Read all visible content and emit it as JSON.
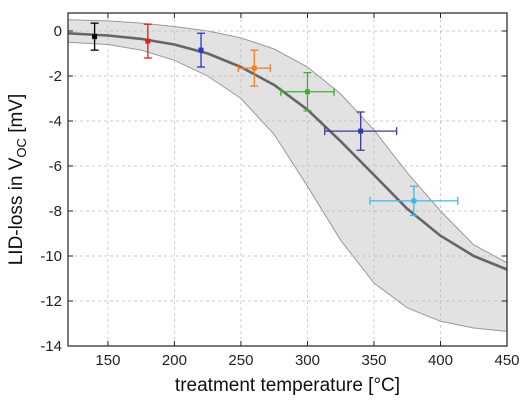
{
  "chart_data": {
    "type": "scatter",
    "xlabel": "treatment temperature [°C]",
    "ylabel_parts": {
      "pre": "LID-loss in V",
      "sub": "OC",
      "post": " [mV]"
    },
    "xlim": [
      120,
      450
    ],
    "ylim": [
      -14,
      0.8
    ],
    "x_ticks": [
      150,
      200,
      250,
      300,
      350,
      400,
      450
    ],
    "y_ticks": [
      0,
      -2,
      -4,
      -6,
      -8,
      -10,
      -12,
      -14
    ],
    "grid": true,
    "points": [
      {
        "x": 140,
        "y": -0.25,
        "xerr": 0,
        "yerr": 0.6,
        "color": "#000000"
      },
      {
        "x": 180,
        "y": -0.45,
        "xerr": 0,
        "yerr": 0.75,
        "color": "#e02020"
      },
      {
        "x": 220,
        "y": -0.85,
        "xerr": 0,
        "yerr": 0.75,
        "color": "#2a36c8"
      },
      {
        "x": 260,
        "y": -1.65,
        "xerr": 12,
        "yerr": 0.8,
        "color": "#f08020"
      },
      {
        "x": 300,
        "y": -2.7,
        "xerr": 20,
        "yerr": 0.85,
        "color": "#3cb030"
      },
      {
        "x": 340,
        "y": -4.45,
        "xerr": 27,
        "yerr": 0.85,
        "color": "#3a3aa0"
      },
      {
        "x": 380,
        "y": -7.55,
        "xerr": 33,
        "yerr": 0.65,
        "color": "#40b8e8"
      }
    ],
    "fit_curve": {
      "x": [
        120,
        150,
        175,
        200,
        225,
        250,
        275,
        300,
        325,
        350,
        375,
        400,
        425,
        450
      ],
      "y": [
        -0.1,
        -0.2,
        -0.35,
        -0.6,
        -1.0,
        -1.6,
        -2.4,
        -3.5,
        -4.9,
        -6.4,
        -7.9,
        -9.1,
        -10.0,
        -10.6
      ],
      "color": "#666666"
    },
    "confidence_band": {
      "x": [
        120,
        150,
        175,
        200,
        225,
        250,
        275,
        300,
        325,
        350,
        375,
        400,
        425,
        450
      ],
      "upper": [
        0.5,
        0.45,
        0.35,
        0.2,
        0.0,
        -0.3,
        -0.8,
        -1.6,
        -2.8,
        -4.4,
        -6.3,
        -8.0,
        -9.5,
        -10.3
      ],
      "lower": [
        -0.5,
        -0.6,
        -0.85,
        -1.3,
        -2.0,
        -3.0,
        -4.6,
        -6.9,
        -9.3,
        -11.2,
        -12.3,
        -12.9,
        -13.2,
        -13.35
      ],
      "fill": "#e2e2e2",
      "stroke": "#999999"
    }
  }
}
